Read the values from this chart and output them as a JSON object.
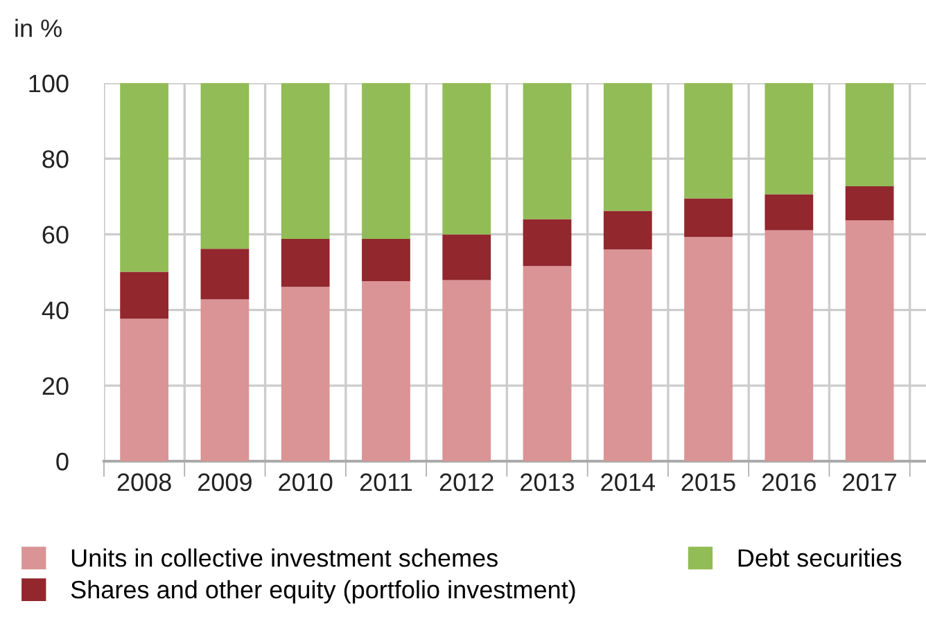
{
  "chart_data": {
    "type": "bar",
    "ylabel": "in %",
    "stacked": true,
    "categories": [
      "2008",
      "2009",
      "2010",
      "2011",
      "2012",
      "2013",
      "2014",
      "2015",
      "2016",
      "2017"
    ],
    "series": [
      {
        "name": "Units in collective investment schemes",
        "color": "#da9495",
        "values": [
          37.7,
          42.8,
          46.1,
          47.6,
          47.9,
          51.6,
          56.0,
          59.3,
          61.1,
          63.7
        ]
      },
      {
        "name": "Shares and other equity (portfolio investment)",
        "color": "#92272e",
        "values": [
          12.4,
          13.4,
          12.7,
          11.2,
          12.1,
          12.4,
          10.2,
          10.2,
          9.5,
          9.0
        ]
      },
      {
        "name": "Debt securities",
        "color": "#92bc55",
        "values": [
          49.9,
          43.8,
          41.2,
          41.2,
          40.0,
          36.0,
          33.8,
          30.5,
          29.4,
          27.3
        ]
      }
    ],
    "ylim": [
      0,
      100
    ],
    "yticks": [
      0,
      20,
      40,
      60,
      80,
      100
    ],
    "grid": true,
    "legend": "bottom"
  }
}
